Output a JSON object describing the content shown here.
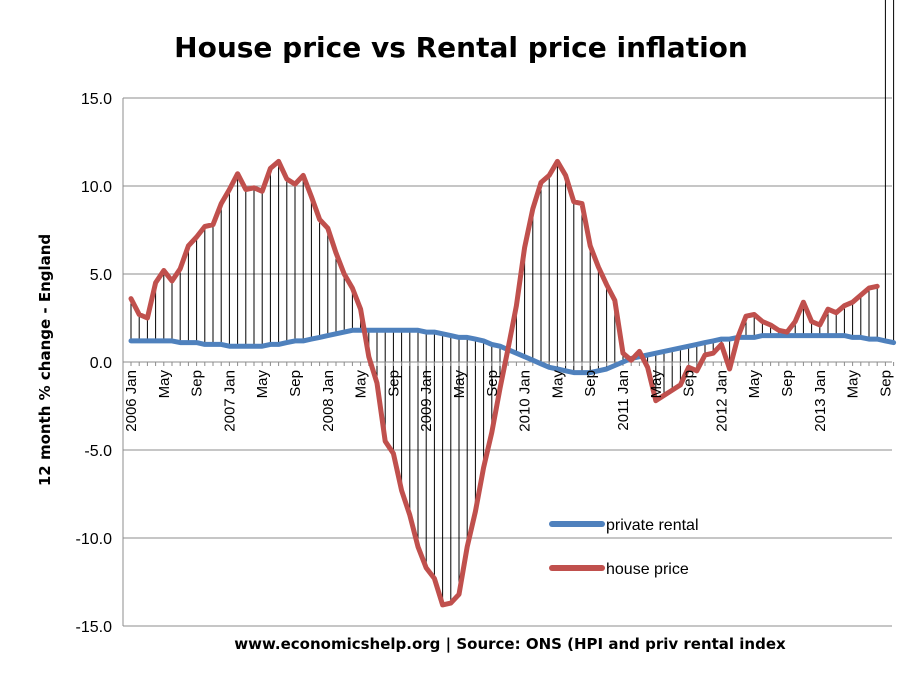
{
  "chart_data": {
    "type": "line",
    "title": "House price vs Rental price inflation",
    "ylabel": "12 month % change - England",
    "xlabel": "www.economicshelp.org | Source: ONS (HPI and priv rental index",
    "ylim": [
      -15,
      15
    ],
    "yticks": [
      -15,
      -10,
      -5,
      0,
      5,
      10,
      15
    ],
    "ytick_labels": [
      "-15.0",
      "-10.0",
      "-5.0",
      "0.0",
      "5.0",
      "10.0",
      "15.0"
    ],
    "grid": "horizontal",
    "legend_position": "bottom-right",
    "x_start": "2006 Jan",
    "x_tick_labels": [
      {
        "month": 0,
        "label": "2006 Jan"
      },
      {
        "month": 4,
        "label": "May"
      },
      {
        "month": 8,
        "label": "Sep"
      },
      {
        "month": 12,
        "label": "2007 Jan"
      },
      {
        "month": 16,
        "label": "May"
      },
      {
        "month": 20,
        "label": "Sep"
      },
      {
        "month": 24,
        "label": "2008 Jan"
      },
      {
        "month": 28,
        "label": "May"
      },
      {
        "month": 32,
        "label": "Sep"
      },
      {
        "month": 36,
        "label": "2009 Jan"
      },
      {
        "month": 40,
        "label": "May"
      },
      {
        "month": 44,
        "label": "Sep"
      },
      {
        "month": 48,
        "label": "2010 Jan"
      },
      {
        "month": 52,
        "label": "May"
      },
      {
        "month": 56,
        "label": "Sep"
      },
      {
        "month": 60,
        "label": "2011 Jan"
      },
      {
        "month": 64,
        "label": "May"
      },
      {
        "month": 68,
        "label": "Sep"
      },
      {
        "month": 72,
        "label": "2012 Jan"
      },
      {
        "month": 76,
        "label": "May"
      },
      {
        "month": 80,
        "label": "Sep"
      },
      {
        "month": 84,
        "label": "2013 Jan"
      },
      {
        "month": 88,
        "label": "May"
      },
      {
        "month": 92,
        "label": "Sep"
      }
    ],
    "series": [
      {
        "name": "private rental",
        "color": "#4f81bd",
        "values": [
          1.2,
          1.2,
          1.2,
          1.2,
          1.2,
          1.2,
          1.1,
          1.1,
          1.1,
          1.0,
          1.0,
          1.0,
          0.9,
          0.9,
          0.9,
          0.9,
          0.9,
          1.0,
          1.0,
          1.1,
          1.2,
          1.2,
          1.3,
          1.4,
          1.5,
          1.6,
          1.7,
          1.8,
          1.8,
          1.8,
          1.8,
          1.8,
          1.8,
          1.8,
          1.8,
          1.8,
          1.7,
          1.7,
          1.6,
          1.5,
          1.4,
          1.4,
          1.3,
          1.2,
          1.0,
          0.9,
          0.7,
          0.5,
          0.3,
          0.1,
          -0.1,
          -0.3,
          -0.4,
          -0.5,
          -0.6,
          -0.6,
          -0.6,
          -0.5,
          -0.4,
          -0.2,
          0.0,
          0.2,
          0.3,
          0.4,
          0.5,
          0.6,
          0.7,
          0.8,
          0.9,
          1.0,
          1.1,
          1.2,
          1.3,
          1.3,
          1.4,
          1.4,
          1.4,
          1.5,
          1.5,
          1.5,
          1.5,
          1.5,
          1.5,
          1.5,
          1.5,
          1.5,
          1.5,
          1.5,
          1.4,
          1.4,
          1.3,
          1.3,
          1.2,
          1.1
        ]
      },
      {
        "name": "house price",
        "color": "#c0504d",
        "values": [
          3.6,
          2.7,
          2.5,
          4.5,
          5.2,
          4.6,
          5.3,
          6.6,
          7.1,
          7.7,
          7.8,
          9.0,
          9.8,
          10.7,
          9.8,
          9.9,
          9.7,
          11.0,
          11.4,
          10.4,
          10.1,
          10.6,
          9.4,
          8.1,
          7.6,
          6.2,
          5.0,
          4.2,
          3.0,
          0.3,
          -1.2,
          -4.5,
          -5.2,
          -7.3,
          -8.7,
          -10.5,
          -11.7,
          -12.3,
          -13.8,
          -13.7,
          -13.2,
          -10.5,
          -8.5,
          -6.0,
          -4.0,
          -1.5,
          0.8,
          3.2,
          6.5,
          8.7,
          10.2,
          10.6,
          11.4,
          10.6,
          9.1,
          9.0,
          6.6,
          5.4,
          4.4,
          3.5,
          0.5,
          0.1,
          0.6,
          -0.3,
          -2.2,
          -1.9,
          -1.6,
          -1.3,
          -0.3,
          -0.5,
          0.4,
          0.5,
          1.0,
          -0.4,
          1.4,
          2.6,
          2.7,
          2.3,
          2.1,
          1.8,
          1.7,
          2.3,
          3.4,
          2.3,
          2.1,
          3.0,
          2.8,
          3.2,
          3.4,
          3.8,
          4.2,
          4.3
        ]
      }
    ]
  }
}
